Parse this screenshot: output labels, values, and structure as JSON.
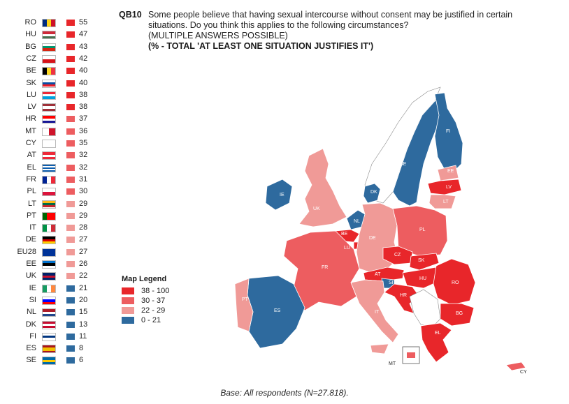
{
  "question": {
    "id": "QB10",
    "text": "Some people believe that having sexual intercourse without consent may be justified in certain situations. Do you think this applies to the following circumstances?",
    "sub": "(MULTIPLE ANSWERS POSSIBLE)",
    "heading": "(% - TOTAL 'AT LEAST ONE SITUATION JUSTIFIES IT')"
  },
  "colors": {
    "c1": "#e8262a",
    "c2": "#ed5d60",
    "c3": "#f09a97",
    "c4": "#2e6a9e",
    "nonEU": "#ffffff"
  },
  "legend": {
    "title": "Map Legend",
    "items": [
      {
        "label": "38 - 100",
        "color": "#e8262a"
      },
      {
        "label": "30 - 37",
        "color": "#ed5d60"
      },
      {
        "label": "22 - 29",
        "color": "#f09a97"
      },
      {
        "label": "0 - 21",
        "color": "#2e6a9e"
      }
    ]
  },
  "countries": [
    {
      "code": "RO",
      "value": 55
    },
    {
      "code": "HU",
      "value": 47
    },
    {
      "code": "BG",
      "value": 43
    },
    {
      "code": "CZ",
      "value": 42
    },
    {
      "code": "BE",
      "value": 40
    },
    {
      "code": "SK",
      "value": 40
    },
    {
      "code": "LU",
      "value": 38
    },
    {
      "code": "LV",
      "value": 38
    },
    {
      "code": "HR",
      "value": 37
    },
    {
      "code": "MT",
      "value": 36
    },
    {
      "code": "CY",
      "value": 35
    },
    {
      "code": "AT",
      "value": 32
    },
    {
      "code": "EL",
      "value": 32
    },
    {
      "code": "FR",
      "value": 31
    },
    {
      "code": "PL",
      "value": 30
    },
    {
      "code": "LT",
      "value": 29
    },
    {
      "code": "PT",
      "value": 29
    },
    {
      "code": "IT",
      "value": 28
    },
    {
      "code": "DE",
      "value": 27
    },
    {
      "code": "EU28",
      "value": 27
    },
    {
      "code": "EE",
      "value": 26
    },
    {
      "code": "UK",
      "value": 22
    },
    {
      "code": "IE",
      "value": 21
    },
    {
      "code": "SI",
      "value": 20
    },
    {
      "code": "NL",
      "value": 15
    },
    {
      "code": "DK",
      "value": 13
    },
    {
      "code": "FI",
      "value": 11
    },
    {
      "code": "ES",
      "value": 8
    },
    {
      "code": "SE",
      "value": 6
    }
  ],
  "base": "Base: All respondents (N=27.818)."
}
